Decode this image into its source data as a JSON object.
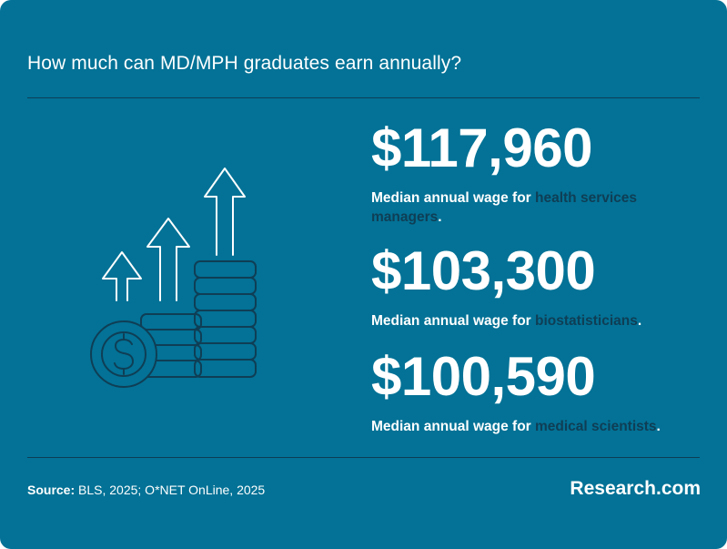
{
  "title": "How much can MD/MPH graduates earn annually?",
  "stats": [
    {
      "amount": "$117,960",
      "prefix": "Median annual wage for ",
      "highlight": "health services managers",
      "suffix": "."
    },
    {
      "amount": "$103,300",
      "prefix": "Median annual wage for ",
      "highlight": "biostatisticians",
      "suffix": "."
    },
    {
      "amount": "$100,590",
      "prefix": "Median annual wage for ",
      "highlight": "medical scientists",
      "suffix": "."
    }
  ],
  "source": {
    "label": "Source:",
    "text": " BLS, 2025; O*NET OnLine, 2025"
  },
  "brand": "Research.com",
  "colors": {
    "background": "#037296",
    "highlight": "#0f3e55",
    "text": "#ffffff"
  },
  "illustration": {
    "icon": "coins-growth-icon",
    "symbol": "$"
  }
}
